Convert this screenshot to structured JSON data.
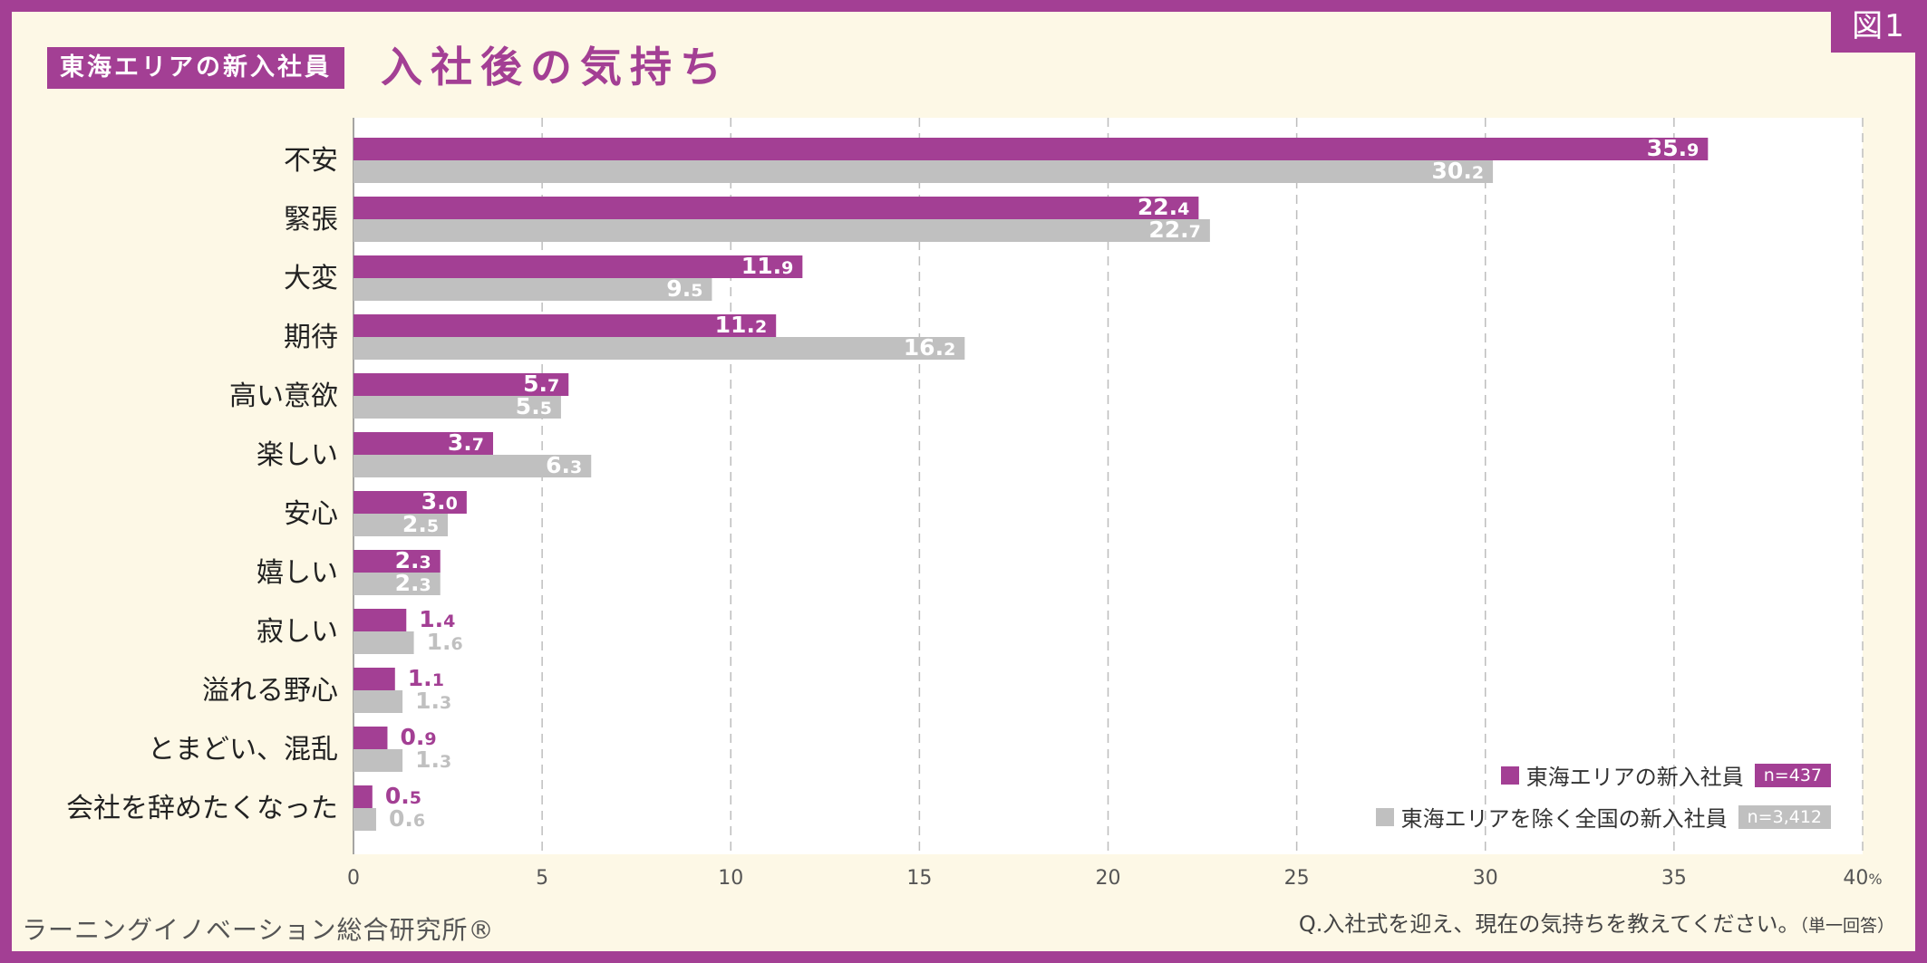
{
  "figure_tag": "図1",
  "header": {
    "label": "東海エリアの新入社員",
    "title": "入社後の気持ち"
  },
  "colors": {
    "accent": "#a33f94",
    "gray": "#c0c0c0",
    "background": "#fdf8e6",
    "plot_background": "#ffffff"
  },
  "chart_data": {
    "type": "bar",
    "orientation": "horizontal",
    "categories": [
      "不安",
      "緊張",
      "大変",
      "期待",
      "高い意欲",
      "楽しい",
      "安心",
      "嬉しい",
      "寂しい",
      "溢れる野心",
      "とまどい、混乱",
      "会社を辞めたくなった"
    ],
    "series": [
      {
        "name": "東海エリアの新入社員",
        "n_label": "n=437",
        "color": "#a33f94",
        "values": [
          35.9,
          22.4,
          11.9,
          11.2,
          5.7,
          3.7,
          3.0,
          2.3,
          1.4,
          1.1,
          0.9,
          0.5
        ]
      },
      {
        "name": "東海エリアを除く全国の新入社員",
        "n_label": "n=3,412",
        "color": "#c0c0c0",
        "values": [
          30.2,
          22.7,
          9.5,
          16.2,
          5.5,
          6.3,
          2.5,
          2.3,
          1.6,
          1.3,
          1.3,
          0.6
        ]
      }
    ],
    "xlim": [
      0,
      40
    ],
    "xticks": [
      "0",
      "5",
      "10",
      "15",
      "20",
      "25",
      "30",
      "35",
      "40"
    ],
    "x_unit": "%",
    "grid": "vertical-dashed",
    "legend_position": "bottom-right"
  },
  "footer": {
    "source": "ラーニングイノベーション総合研究所®",
    "question": "Q.入社式を迎え、現在の気持ちを教えてください。",
    "question_note": "（単一回答）"
  }
}
